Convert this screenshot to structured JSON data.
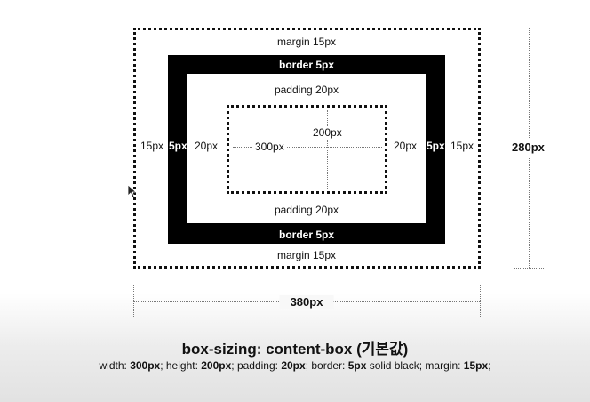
{
  "diagram": {
    "margin_top_label": "margin 15px",
    "margin_bottom_label": "margin 15px",
    "border_top_label": "border 5px",
    "border_bottom_label": "border 5px",
    "padding_top_label": "padding 20px",
    "padding_bottom_label": "padding 20px",
    "left_margin_label": "15px",
    "left_border_label": "5px",
    "left_padding_label": "20px",
    "right_padding_label": "20px",
    "right_border_label": "5px",
    "right_margin_label": "15px",
    "content_width_label": "300px",
    "content_height_label": "200px",
    "total_height_label": "280px",
    "total_width_label": "380px"
  },
  "caption": {
    "title": "box-sizing: content-box (기본값)",
    "parts": [
      {
        "t": "width: ",
        "b": false
      },
      {
        "t": "300px",
        "b": true
      },
      {
        "t": "; height: ",
        "b": false
      },
      {
        "t": "200px",
        "b": true
      },
      {
        "t": "; padding: ",
        "b": false
      },
      {
        "t": "20px",
        "b": true
      },
      {
        "t": "; border: ",
        "b": false
      },
      {
        "t": "5px",
        "b": true
      },
      {
        "t": " solid black; margin: ",
        "b": false
      },
      {
        "t": "15px",
        "b": true
      },
      {
        "t": ";",
        "b": false
      }
    ]
  }
}
